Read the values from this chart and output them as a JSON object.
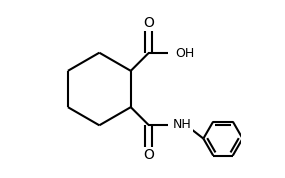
{
  "bg_color": "#ffffff",
  "line_color": "#000000",
  "line_width": 1.5,
  "font_size": 9,
  "fig_width": 2.85,
  "fig_height": 1.78,
  "dpi": 100,
  "xlim": [
    0.0,
    1.0
  ],
  "ylim": [
    0.05,
    0.95
  ]
}
